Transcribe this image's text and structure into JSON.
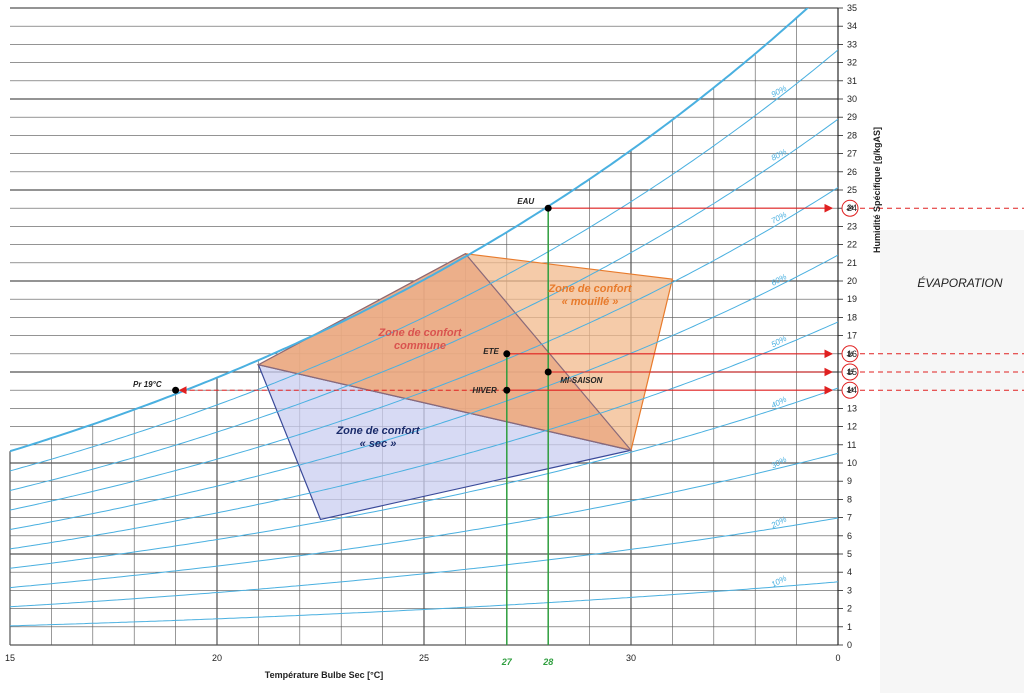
{
  "chart_data": {
    "type": "psychrometric",
    "xlabel": "Température Bulbe Sec [°C]",
    "ylabel": "Humidité Spécifique [g/kgAS]",
    "xlim": [
      15,
      35
    ],
    "ylim": [
      0,
      35
    ],
    "x_ticks": [
      15,
      20,
      25,
      30
    ],
    "extra_x_ticks": [
      "0"
    ],
    "y_ticks": [
      0,
      1,
      2,
      3,
      4,
      5,
      6,
      7,
      8,
      9,
      10,
      11,
      12,
      13,
      14,
      15,
      16,
      17,
      18,
      19,
      20,
      21,
      22,
      23,
      24,
      25,
      26,
      27,
      28,
      29,
      30,
      31,
      32,
      33,
      34,
      35
    ],
    "rh_curves": [
      {
        "rh": 10,
        "label": "10%"
      },
      {
        "rh": 20,
        "label": "20%"
      },
      {
        "rh": 30,
        "label": "30%"
      },
      {
        "rh": 40,
        "label": "40%"
      },
      {
        "rh": 50,
        "label": "50%"
      },
      {
        "rh": 60,
        "label": "60%"
      },
      {
        "rh": 70,
        "label": "70%"
      },
      {
        "rh": 80,
        "label": "80%"
      },
      {
        "rh": 90,
        "label": "90%"
      },
      {
        "rh": 100,
        "label": ""
      }
    ],
    "zones": [
      {
        "label": [
          "Zone de confort",
          "« mouillé »"
        ],
        "color": "#f2b98c",
        "stroke": "#e87b2c",
        "points": [
          [
            21,
            15.4
          ],
          [
            26,
            21.5
          ],
          [
            31,
            20.1
          ],
          [
            30,
            10.7
          ]
        ]
      },
      {
        "label": [
          "Zone de confort",
          "« sec »"
        ],
        "color": "#c9cdf0",
        "stroke": "#3a4a9a",
        "points": [
          [
            21,
            15.4
          ],
          [
            22.5,
            6.9
          ],
          [
            30,
            10.7
          ]
        ]
      },
      {
        "label": [
          "Zone de confort",
          "commune"
        ],
        "color": "#e8a580",
        "stroke": "#8a6a7a",
        "points": [
          [
            21,
            15.4
          ],
          [
            26,
            21.5
          ],
          [
            30,
            10.7
          ]
        ]
      }
    ],
    "points": [
      {
        "name": "EAU",
        "x": 28,
        "y": 24
      },
      {
        "name": "ETE",
        "x": 27,
        "y": 16
      },
      {
        "name": "HIVER",
        "x": 27,
        "y": 14
      },
      {
        "name": "MI-SAISON",
        "x": 28,
        "y": 15
      },
      {
        "name": "Pr 19°C",
        "x": 19,
        "y": 14
      }
    ],
    "green_lines": [
      {
        "x": 27,
        "label": "27"
      },
      {
        "x": 28,
        "label": "28"
      }
    ],
    "arrows_to_axis": [
      {
        "y": 24,
        "label": "24"
      },
      {
        "y": 16,
        "label": "16"
      },
      {
        "y": 15,
        "label": "15"
      },
      {
        "y": 14,
        "label": "14"
      }
    ],
    "annotation": "ÉVAPORATION"
  },
  "colors": {
    "rh_curve": "#4ab0e0",
    "grid": "#555555",
    "arrow": "#e02020",
    "green": "#2e9e3e"
  }
}
